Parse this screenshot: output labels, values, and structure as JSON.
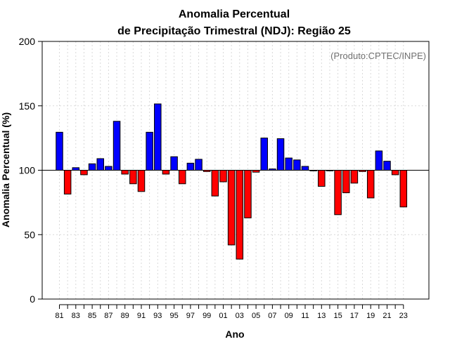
{
  "chart_data": {
    "type": "bar",
    "title_line1": "Anomalia Percentual",
    "title_line2": "de Precipitação Trimestral (NDJ): Região 25",
    "credit": "(Produto:CPTEC/INPE)",
    "xlabel": "Ano",
    "ylabel": "Anomalia Percentual (%)",
    "ylim": [
      0,
      200
    ],
    "yticks": [
      0,
      50,
      100,
      150,
      200
    ],
    "baseline": 100,
    "grid": true,
    "colors": {
      "above": "#0000ff",
      "below": "#ff0000"
    },
    "xtick_labels": [
      "81",
      "83",
      "85",
      "87",
      "89",
      "91",
      "93",
      "95",
      "97",
      "99",
      "01",
      "03",
      "05",
      "07",
      "09",
      "11",
      "13",
      "15",
      "17",
      "19",
      "21",
      "23"
    ],
    "categories": [
      "81",
      "82",
      "83",
      "84",
      "85",
      "86",
      "87",
      "88",
      "89",
      "90",
      "91",
      "92",
      "93",
      "94",
      "95",
      "96",
      "97",
      "98",
      "99",
      "00",
      "01",
      "02",
      "03",
      "04",
      "05",
      "06",
      "07",
      "08",
      "09",
      "10",
      "11",
      "12",
      "13",
      "14",
      "15",
      "16",
      "17",
      "18",
      "19",
      "20",
      "21",
      "22",
      "23"
    ],
    "values": [
      129.5,
      81.5,
      102.0,
      96.5,
      105.0,
      109.0,
      103.0,
      138.0,
      97.0,
      89.5,
      83.5,
      129.5,
      151.5,
      97.0,
      110.5,
      89.5,
      105.5,
      108.5,
      99.0,
      80.0,
      91.0,
      42.0,
      31.0,
      63.0,
      98.5,
      125.0,
      101.0,
      124.5,
      109.5,
      108.0,
      103.0,
      99.5,
      87.5,
      99.5,
      65.5,
      82.5,
      90.0,
      99.0,
      78.5,
      115.0,
      107.0,
      96.5,
      71.5
    ]
  }
}
